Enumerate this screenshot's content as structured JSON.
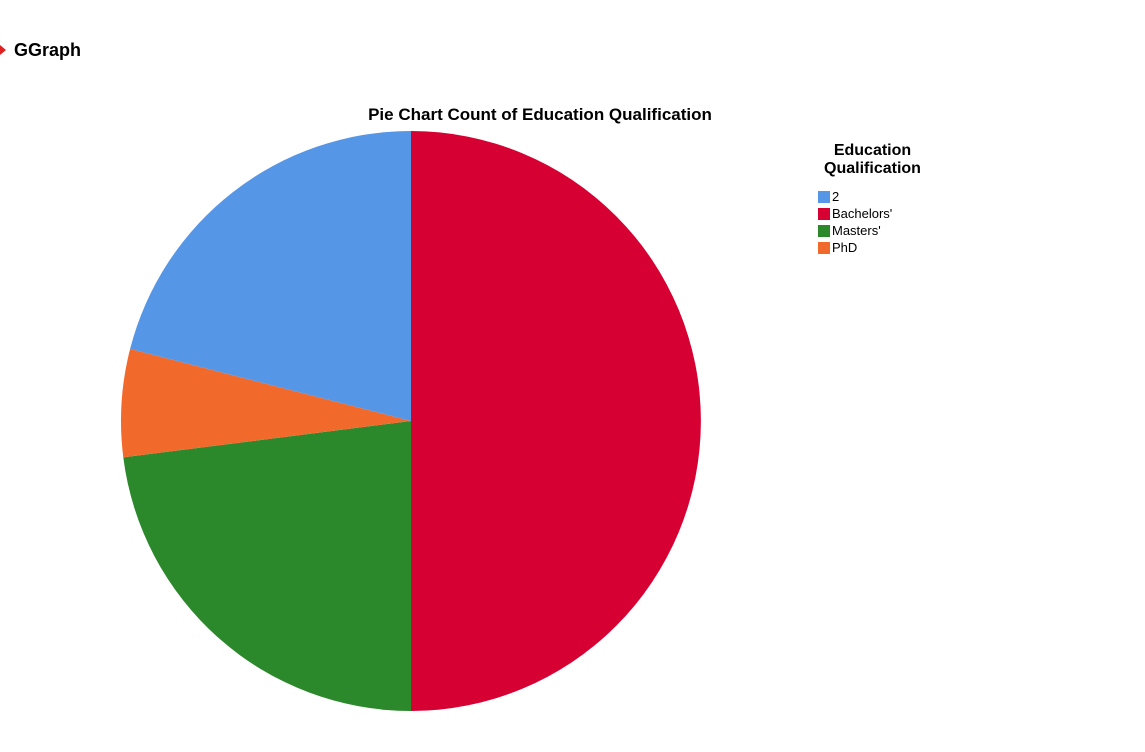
{
  "output": {
    "title": "GGraph",
    "arrow_icon": "expand-arrow-icon"
  },
  "chart_data": {
    "type": "pie",
    "title": "Pie Chart Count of Education Qualification",
    "legend_title": "Education Qualification",
    "legend_position": "right",
    "categories": [
      "2",
      "Bachelors'",
      "Masters'",
      "PhD"
    ],
    "values": [
      21,
      50,
      23,
      6
    ],
    "colors": [
      "#5596e6",
      "#d60032",
      "#2b882b",
      "#f2692c"
    ],
    "draw_order": [
      "Bachelors'",
      "Masters'",
      "PhD",
      "2"
    ]
  }
}
